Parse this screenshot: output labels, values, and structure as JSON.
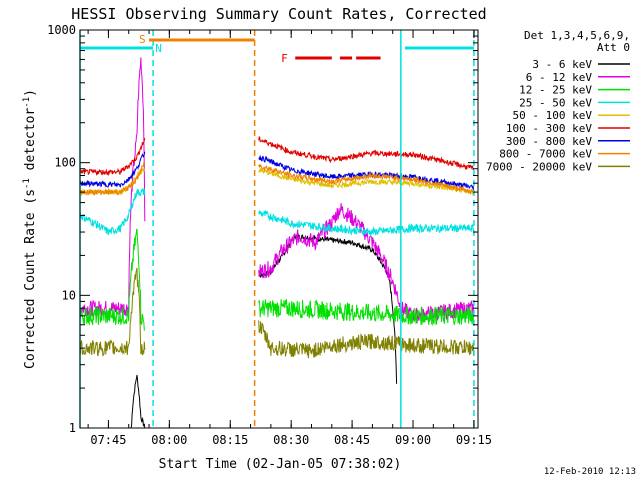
{
  "chart_data": {
    "type": "line",
    "title": "HESSI Observing Summary Count Rates, Corrected",
    "xlabel": "Start Time (02-Jan-05 07:38:02)",
    "ylabel_main": "Corrected Count Rate (s",
    "ylabel_sup1": "-1",
    "ylabel_mid": " detector",
    "ylabel_sup2": "-1",
    "ylabel_end": ")",
    "y_scale": "log",
    "xlim": [
      "07:38",
      "09:16"
    ],
    "ylim": [
      1,
      1000
    ],
    "x_ticks": [
      "07:45",
      "08:00",
      "08:15",
      "08:30",
      "08:45",
      "09:00",
      "09:15"
    ],
    "y_ticks": [
      "1",
      "10",
      "100",
      "1000"
    ],
    "legend_title_1": "Det 1,3,4,5,6,9,",
    "legend_title_2": "Att 0",
    "legend_position": "right",
    "footer_date": "12-Feb-2010 12:13",
    "annotations": [
      {
        "label": "S",
        "x": "07:55",
        "color": "#f08000"
      },
      {
        "label": "N",
        "x": "07:59",
        "color": "#00e0e0"
      },
      {
        "label": "F",
        "x": "08:30",
        "color": "#e00000"
      }
    ],
    "bars": [
      {
        "name": "night",
        "color": "#00e0e0",
        "segments": [
          [
            "07:38",
            "07:56"
          ],
          [
            "08:58",
            "09:15"
          ]
        ]
      },
      {
        "name": "saa",
        "color": "#f08000",
        "segments": [
          [
            "07:55",
            "08:21"
          ]
        ]
      },
      {
        "name": "flare",
        "color": "#e00000",
        "segments": [
          [
            "08:31",
            "08:40"
          ],
          [
            "08:42",
            "08:45"
          ],
          [
            "08:46",
            "08:52"
          ]
        ]
      }
    ],
    "vlines": [
      {
        "x": "07:38",
        "color": "#00e0e0",
        "style": "solid"
      },
      {
        "x": "07:56",
        "color": "#00e0e0",
        "style": "dashed"
      },
      {
        "x": "08:21",
        "color": "#f08000",
        "style": "dashed"
      },
      {
        "x": "08:57",
        "color": "#00e0e0",
        "style": "solid"
      },
      {
        "x": "09:15",
        "color": "#00e0e0",
        "style": "dashed"
      }
    ],
    "series": [
      {
        "name": "3 - 6 keV",
        "color": "#000000",
        "noise": 0.02,
        "spike": 1,
        "seg1": [
          [
            "07:38",
            0
          ],
          [
            "07:50",
            0
          ],
          [
            "07:51",
            1.5
          ],
          [
            "07:52",
            2.5
          ],
          [
            "07:53",
            1.2
          ],
          [
            "07:54",
            1
          ]
        ],
        "seg2": [
          [
            "08:22",
            14
          ],
          [
            "08:25",
            15
          ],
          [
            "08:28",
            20
          ],
          [
            "08:31",
            28
          ],
          [
            "08:35",
            27
          ],
          [
            "08:40",
            26
          ],
          [
            "08:45",
            25
          ],
          [
            "08:50",
            22
          ],
          [
            "08:54",
            14
          ],
          [
            "08:56",
            2
          ]
        ]
      },
      {
        "name": "6 - 12 keV",
        "color": "#e000e0",
        "noise": 0.06,
        "seg1": [
          [
            "07:38",
            8
          ],
          [
            "07:50",
            8
          ],
          [
            "07:52",
            150
          ],
          [
            "07:53",
            600
          ],
          [
            "07:54",
            8
          ]
        ],
        "seg2": [
          [
            "08:22",
            15
          ],
          [
            "08:25",
            16
          ],
          [
            "08:28",
            22
          ],
          [
            "08:32",
            28
          ],
          [
            "08:36",
            25
          ],
          [
            "08:40",
            35
          ],
          [
            "08:42",
            45
          ],
          [
            "08:45",
            38
          ],
          [
            "08:50",
            25
          ],
          [
            "08:54",
            15
          ],
          [
            "08:57",
            8
          ],
          [
            "09:00",
            7
          ],
          [
            "09:15",
            8
          ]
        ]
      },
      {
        "name": "12 - 25 keV",
        "color": "#00e000",
        "noise": 0.07,
        "seg1": [
          [
            "07:38",
            7
          ],
          [
            "07:50",
            7
          ],
          [
            "07:52",
            30
          ],
          [
            "07:53",
            7
          ],
          [
            "07:54",
            6
          ]
        ],
        "seg2": [
          [
            "08:22",
            8
          ],
          [
            "08:30",
            8
          ],
          [
            "08:45",
            7.5
          ],
          [
            "09:00",
            7
          ],
          [
            "09:15",
            7
          ]
        ]
      },
      {
        "name": "25 - 50 keV",
        "color": "#00e0e0",
        "noise": 0.03,
        "seg1": [
          [
            "07:38",
            40
          ],
          [
            "07:45",
            30
          ],
          [
            "07:48",
            32
          ],
          [
            "07:50",
            40
          ],
          [
            "07:52",
            60
          ],
          [
            "07:54",
            60
          ]
        ],
        "seg2": [
          [
            "08:22",
            42
          ],
          [
            "08:30",
            35
          ],
          [
            "08:40",
            32
          ],
          [
            "08:50",
            30
          ],
          [
            "09:00",
            32
          ],
          [
            "09:15",
            32
          ]
        ]
      },
      {
        "name": "50 - 100 keV",
        "color": "#e0c000",
        "noise": 0.02,
        "seg1": [
          [
            "07:38",
            60
          ],
          [
            "07:48",
            60
          ],
          [
            "07:50",
            65
          ],
          [
            "07:52",
            80
          ],
          [
            "07:54",
            90
          ]
        ],
        "seg2": [
          [
            "08:22",
            88
          ],
          [
            "08:30",
            75
          ],
          [
            "08:40",
            67
          ],
          [
            "08:50",
            72
          ],
          [
            "09:00",
            70
          ],
          [
            "09:15",
            60
          ]
        ]
      },
      {
        "name": "100 - 300 keV",
        "color": "#e00000",
        "noise": 0.02,
        "seg1": [
          [
            "07:38",
            85
          ],
          [
            "07:48",
            85
          ],
          [
            "07:50",
            95
          ],
          [
            "07:52",
            110
          ],
          [
            "07:54",
            150
          ]
        ],
        "seg2": [
          [
            "08:22",
            150
          ],
          [
            "08:30",
            120
          ],
          [
            "08:40",
            105
          ],
          [
            "08:50",
            118
          ],
          [
            "09:00",
            115
          ],
          [
            "09:15",
            90
          ]
        ]
      },
      {
        "name": "300 - 800 keV",
        "color": "#0000e0",
        "noise": 0.02,
        "seg1": [
          [
            "07:38",
            70
          ],
          [
            "07:48",
            68
          ],
          [
            "07:50",
            75
          ],
          [
            "07:52",
            90
          ],
          [
            "07:54",
            120
          ]
        ],
        "seg2": [
          [
            "08:22",
            110
          ],
          [
            "08:30",
            88
          ],
          [
            "08:40",
            78
          ],
          [
            "08:50",
            82
          ],
          [
            "09:00",
            78
          ],
          [
            "09:15",
            65
          ]
        ]
      },
      {
        "name": "800 - 7000 keV",
        "color": "#f08000",
        "noise": 0.02,
        "seg1": [
          [
            "07:38",
            60
          ],
          [
            "07:48",
            60
          ],
          [
            "07:50",
            65
          ],
          [
            "07:52",
            75
          ],
          [
            "07:54",
            100
          ]
        ],
        "seg2": [
          [
            "08:22",
            95
          ],
          [
            "08:30",
            80
          ],
          [
            "08:40",
            72
          ],
          [
            "08:50",
            80
          ],
          [
            "09:00",
            75
          ],
          [
            "09:15",
            60
          ]
        ]
      },
      {
        "name": "7000 - 20000 keV",
        "color": "#808000",
        "noise": 0.06,
        "seg1": [
          [
            "07:38",
            4
          ],
          [
            "07:50",
            4
          ],
          [
            "07:52",
            15
          ],
          [
            "07:53",
            4
          ],
          [
            "07:54",
            4
          ]
        ],
        "seg2": [
          [
            "08:22",
            6
          ],
          [
            "08:25",
            4
          ],
          [
            "08:35",
            3.8
          ],
          [
            "08:40",
            4.2
          ],
          [
            "08:50",
            4.5
          ],
          [
            "09:00",
            4.2
          ],
          [
            "09:15",
            4
          ]
        ]
      }
    ]
  }
}
